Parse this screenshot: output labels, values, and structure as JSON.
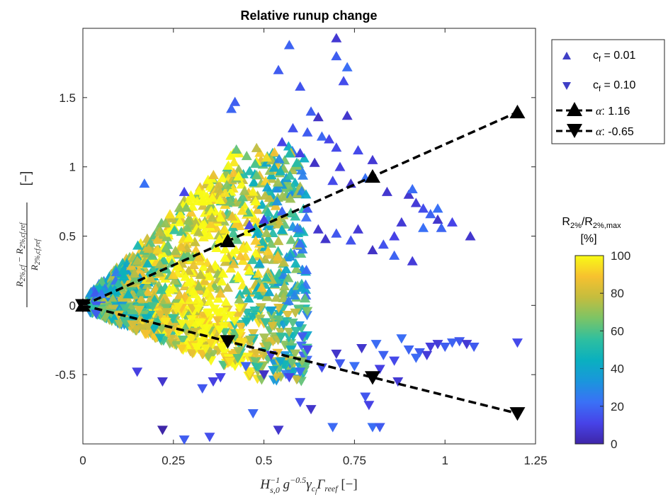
{
  "chart_data": {
    "type": "scatter",
    "title": "Relative runup change",
    "xlabel": "H_{s,0}^{-1} g^{-0.5} γ_{cf} Γ_{reef} [−]",
    "ylabel": "(R_{2%,cf} − R_{2%,cf,ref}) / R_{2%,cf,ref} [−]",
    "xlim": [
      0,
      1.25
    ],
    "ylim": [
      -1.0,
      2.0
    ],
    "x_ticks": [
      0,
      0.25,
      0.5,
      0.75,
      1,
      1.25
    ],
    "x_tick_labels": [
      "0",
      "0.25",
      "0.5",
      "0.75",
      "1",
      "1.25"
    ],
    "y_ticks": [
      -0.5,
      0,
      0.5,
      1,
      1.5
    ],
    "y_tick_labels": [
      "-0.5",
      "0",
      "0.5",
      "1",
      "1.5"
    ],
    "grid": false,
    "legend_position": "top-right outside",
    "series": [
      {
        "name": "c_f = 0.01",
        "marker": "triangle-up",
        "color": "#3f3fc6",
        "points": [
          [
            0.7,
            1.93
          ],
          [
            0.57,
            1.88
          ],
          [
            0.7,
            1.8
          ],
          [
            0.54,
            1.7
          ],
          [
            0.73,
            1.72
          ],
          [
            0.72,
            1.62
          ],
          [
            0.6,
            1.58
          ],
          [
            0.42,
            1.47
          ],
          [
            0.41,
            1.42
          ],
          [
            0.63,
            1.4
          ],
          [
            0.65,
            1.36
          ],
          [
            0.73,
            1.37
          ],
          [
            0.58,
            1.28
          ],
          [
            0.62,
            1.25
          ],
          [
            0.66,
            1.22
          ],
          [
            0.55,
            1.18
          ],
          [
            0.68,
            1.2
          ],
          [
            0.7,
            1.14
          ],
          [
            0.6,
            1.1
          ],
          [
            0.76,
            1.12
          ],
          [
            0.8,
            1.05
          ],
          [
            0.64,
            1.03
          ],
          [
            0.71,
            1.0
          ],
          [
            0.17,
            0.88
          ],
          [
            0.28,
            0.82
          ],
          [
            0.69,
            0.9
          ],
          [
            0.74,
            0.88
          ],
          [
            0.78,
            0.92
          ],
          [
            0.84,
            0.82
          ],
          [
            0.9,
            0.8
          ],
          [
            0.92,
            0.74
          ],
          [
            0.94,
            0.7
          ],
          [
            0.96,
            0.66
          ],
          [
            0.98,
            0.62
          ],
          [
            0.88,
            0.6
          ],
          [
            0.94,
            0.56
          ],
          [
            0.99,
            0.56
          ],
          [
            0.86,
            0.5
          ],
          [
            0.76,
            0.55
          ],
          [
            0.7,
            0.52
          ],
          [
            0.74,
            0.47
          ],
          [
            0.83,
            0.44
          ],
          [
            0.86,
            0.36
          ],
          [
            0.91,
            0.32
          ],
          [
            0.8,
            0.4
          ],
          [
            0.65,
            0.55
          ],
          [
            0.67,
            0.48
          ],
          [
            1.02,
            0.6
          ],
          [
            1.07,
            0.5
          ],
          [
            0.98,
            0.7
          ],
          [
            0.91,
            0.84
          ],
          [
            0.62,
            0.7
          ],
          [
            0.55,
            0.68
          ],
          [
            0.5,
            0.62
          ],
          [
            0.46,
            0.58
          ]
        ]
      },
      {
        "name": "c_f = 0.10",
        "marker": "triangle-down",
        "color": "#3f3fc6",
        "points": [
          [
            0.28,
            -0.97
          ],
          [
            0.35,
            -0.95
          ],
          [
            0.22,
            -0.9
          ],
          [
            0.54,
            -0.9
          ],
          [
            0.69,
            -0.88
          ],
          [
            0.8,
            -0.88
          ],
          [
            0.82,
            -0.88
          ],
          [
            0.47,
            -0.78
          ],
          [
            0.63,
            -0.75
          ],
          [
            0.6,
            -0.7
          ],
          [
            0.79,
            -0.72
          ],
          [
            0.78,
            -0.66
          ],
          [
            0.87,
            -0.55
          ],
          [
            0.33,
            -0.6
          ],
          [
            0.36,
            -0.55
          ],
          [
            0.22,
            -0.55
          ],
          [
            0.15,
            -0.48
          ],
          [
            0.38,
            -0.52
          ],
          [
            0.5,
            -0.5
          ],
          [
            0.57,
            -0.52
          ],
          [
            0.6,
            -0.48
          ],
          [
            0.66,
            -0.45
          ],
          [
            0.71,
            -0.42
          ],
          [
            0.75,
            -0.44
          ],
          [
            0.82,
            -0.46
          ],
          [
            0.86,
            -0.4
          ],
          [
            0.9,
            -0.32
          ],
          [
            0.93,
            -0.34
          ],
          [
            0.96,
            -0.3
          ],
          [
            0.98,
            -0.28
          ],
          [
            1.0,
            -0.3
          ],
          [
            1.02,
            -0.27
          ],
          [
            1.04,
            -0.26
          ],
          [
            1.06,
            -0.28
          ],
          [
            1.08,
            -0.3
          ],
          [
            1.2,
            -0.27
          ],
          [
            0.88,
            -0.24
          ],
          [
            0.81,
            -0.28
          ],
          [
            0.77,
            -0.31
          ],
          [
            0.83,
            -0.36
          ],
          [
            0.7,
            -0.35
          ],
          [
            0.62,
            -0.32
          ],
          [
            0.52,
            -0.36
          ],
          [
            0.45,
            -0.44
          ],
          [
            0.92,
            -0.38
          ],
          [
            0.95,
            -0.36
          ]
        ]
      },
      {
        "name": "α: 1.16",
        "marker": "triangle-up",
        "line": "dashed",
        "color": "#000000",
        "points": [
          [
            0,
            0
          ],
          [
            0.4,
            0.465
          ],
          [
            0.8,
            0.93
          ],
          [
            1.2,
            1.395
          ]
        ]
      },
      {
        "name": "α: -0.65",
        "marker": "triangle-down",
        "line": "dashed",
        "color": "#000000",
        "points": [
          [
            0,
            0
          ],
          [
            0.4,
            -0.26
          ],
          [
            0.8,
            -0.52
          ],
          [
            1.2,
            -0.78
          ]
        ]
      }
    ],
    "colorbar": {
      "label_line1": "R_{2%}/R_{2%,max}",
      "label_line2": "[%]",
      "range": [
        0,
        100
      ],
      "ticks": [
        0,
        20,
        40,
        60,
        80,
        100
      ],
      "tick_labels": [
        "0",
        "20",
        "40",
        "60",
        "80",
        "100"
      ],
      "colormap": [
        "#3e26a8",
        "#4743e8",
        "#3a71f6",
        "#1a96dc",
        "#0ab0bf",
        "#2fbf9f",
        "#7bc466",
        "#c4bd3e",
        "#f7c12f",
        "#f9fb15"
      ]
    }
  }
}
